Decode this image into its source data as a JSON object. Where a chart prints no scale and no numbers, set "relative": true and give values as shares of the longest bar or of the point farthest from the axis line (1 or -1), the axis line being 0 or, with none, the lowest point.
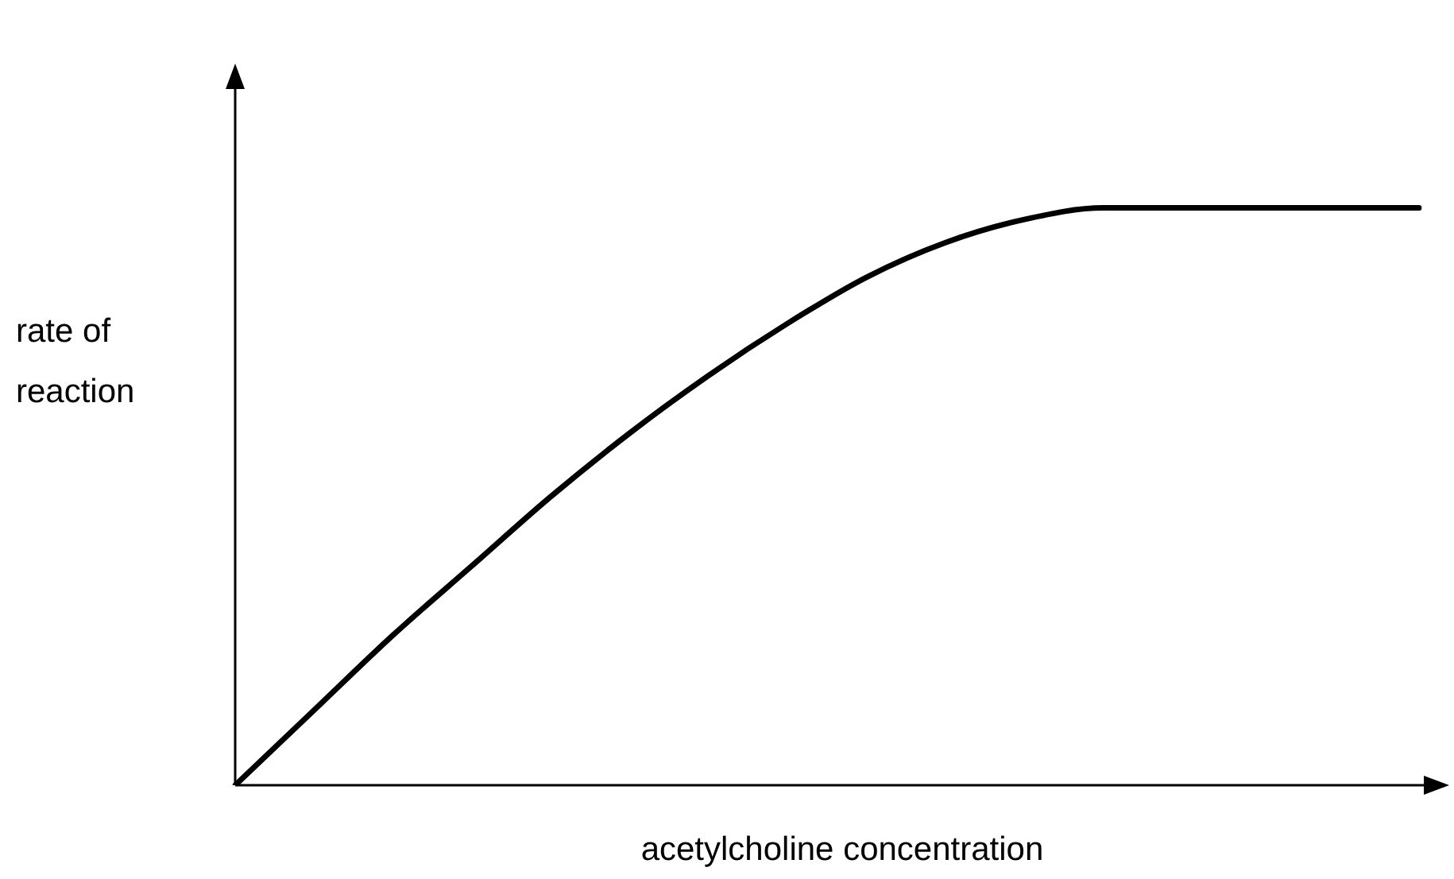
{
  "chart_data": {
    "type": "line",
    "relative": true,
    "xlabel": "acetylcholine concentration",
    "ylabel": "rate of\nreaction",
    "categories": [
      null,
      null,
      null,
      null,
      null,
      null,
      null,
      null,
      null,
      null,
      null,
      null,
      null,
      null,
      null,
      null
    ],
    "series": [
      {
        "color": "#000000",
        "values": [
          0,
          0.13,
          0.26,
          0.38,
          0.5,
          0.61,
          0.71,
          0.8,
          0.88,
          0.94,
          0.98,
          1,
          1,
          1,
          1,
          1
        ]
      }
    ],
    "marker": "none"
  }
}
